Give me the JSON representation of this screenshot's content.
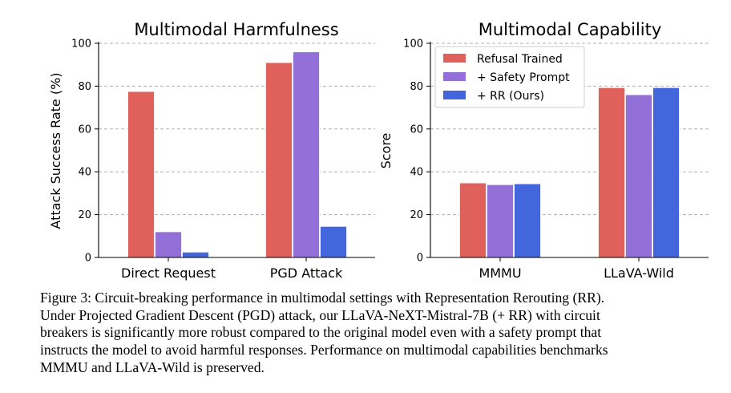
{
  "chart_data": [
    {
      "type": "bar",
      "title": "Multimodal Harmfulness",
      "xlabel": "",
      "ylabel": "Attack Success Rate (%)",
      "ylim": [
        0,
        100
      ],
      "yticks": [
        0,
        20,
        40,
        60,
        80,
        100
      ],
      "categories": [
        "Direct Request",
        "PGD Attack"
      ],
      "series": [
        {
          "name": "Refusal Trained",
          "values": [
            77.5,
            91
          ]
        },
        {
          "name": "+ Safety Prompt",
          "values": [
            12,
            96
          ]
        },
        {
          "name": "+ RR (Ours)",
          "values": [
            2.5,
            14.5
          ]
        }
      ],
      "grid": "horizontal dashed",
      "legend": "none"
    },
    {
      "type": "bar",
      "title": "Multimodal Capability",
      "xlabel": "",
      "ylabel": "Score",
      "ylim": [
        0,
        100
      ],
      "yticks": [
        0,
        20,
        40,
        60,
        80,
        100
      ],
      "categories": [
        "MMMU",
        "LLaVA-Wild"
      ],
      "series": [
        {
          "name": "Refusal Trained",
          "values": [
            34.8,
            79.3
          ]
        },
        {
          "name": "+ Safety Prompt",
          "values": [
            34,
            76
          ]
        },
        {
          "name": "+ RR (Ours)",
          "values": [
            34.4,
            79.3
          ]
        }
      ],
      "grid": "horizontal dashed",
      "legend": "top-left"
    }
  ],
  "colors": {
    "series": [
      "#e0605c",
      "#9270d8",
      "#4466dd"
    ],
    "grid": "#b0b0b0"
  },
  "caption": {
    "lines": [
      "Figure 3: Circuit-breaking performance in multimodal settings with Representation Rerouting (RR).",
      "Under Projected Gradient Descent (PGD) attack, our LLaVA-NeXT-Mistral-7B (+ RR) with circuit",
      "breakers is significantly more robust compared to the original model even with a safety prompt that",
      "instructs the model to avoid harmful responses. Performance on multimodal capabilities benchmarks",
      "MMMU and LLaVA-Wild is preserved."
    ]
  }
}
